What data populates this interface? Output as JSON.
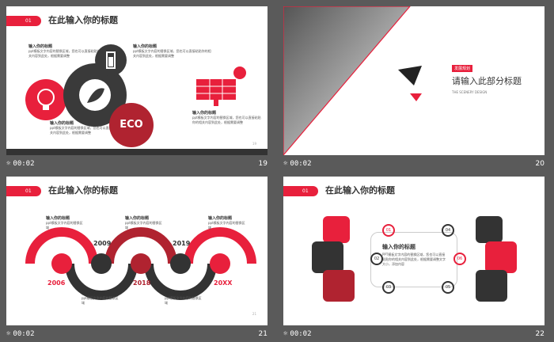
{
  "colors": {
    "accent": "#e8203c",
    "dark": "#333333",
    "darkred": "#b02330"
  },
  "slides": [
    {
      "number": "19",
      "time": "00:02",
      "tag": "01",
      "title": "在此输入你的标题",
      "blocks": [
        {
          "head": "输入你的标题",
          "body": "ppt模板文字内容的替换区域，您也可以直接粘贴你的相关内容到此处，根据需要调整"
        },
        {
          "head": "输入你的标题",
          "body": "ppt模板文字内容的替换区域，您也可以直接粘贴你的相关内容到此处，根据需要调整"
        },
        {
          "head": "输入你的标题",
          "body": "ppt模板文字内容的替换区域，您也可以直接粘贴你的相关内容到此处，根据需要调整"
        },
        {
          "head": "输入你的标题",
          "body": "ppt模板文字内容的替换区域，您也可以直接粘贴你的相关内容到此处，根据需要调整"
        }
      ],
      "eco": "ECO",
      "page": "19"
    },
    {
      "number": "20",
      "time": "00:02",
      "badge": "发展规划",
      "heading": "请输入此部分标题",
      "sub": "THE SCENERY DESIGN"
    },
    {
      "number": "21",
      "time": "00:02",
      "tag": "01",
      "title": "在此输入你的标题",
      "years": [
        "2006",
        "2009",
        "2018",
        "2019",
        "20XX"
      ],
      "heads": [
        "输入你的标题",
        "输入你的标题",
        "输入你的标题",
        "输入你的标题",
        "输入你的标题"
      ],
      "body": "ppt模板文字内容的替换区域"
    },
    {
      "number": "22",
      "time": "00:02",
      "tag": "01",
      "title": "在此输入你的标题",
      "nums": [
        "01",
        "02",
        "03",
        "04",
        "05",
        "06"
      ],
      "center_head": "输入你的标题",
      "center_body": "PPT模板文字内容的替换区域，您也可以直接粘贴你的相关内容到此处，根据需要调整文字大小，添加内容",
      "labels": [
        "输入你的标题",
        "输入你的标题"
      ]
    }
  ]
}
